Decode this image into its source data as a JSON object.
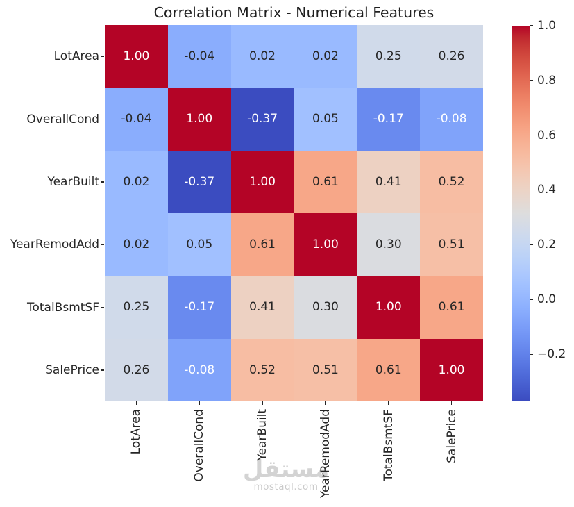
{
  "chart_data": {
    "type": "heatmap",
    "title": "Correlation Matrix - Numerical Features",
    "features": [
      "LotArea",
      "OverallCond",
      "YearBuilt",
      "YearRemodAdd",
      "TotalBsmtSF",
      "SalePrice"
    ],
    "matrix": [
      [
        1.0,
        -0.04,
        0.02,
        0.02,
        0.25,
        0.26
      ],
      [
        -0.04,
        1.0,
        -0.37,
        0.05,
        -0.17,
        -0.08
      ],
      [
        0.02,
        -0.37,
        1.0,
        0.61,
        0.41,
        0.52
      ],
      [
        0.02,
        0.05,
        0.61,
        1.0,
        0.3,
        0.51
      ],
      [
        0.25,
        -0.17,
        0.41,
        0.3,
        1.0,
        0.61
      ],
      [
        0.26,
        -0.08,
        0.52,
        0.51,
        0.61,
        1.0
      ]
    ],
    "annotation_decimals": 2,
    "colormap": "coolwarm",
    "vmin": -0.37,
    "vmax": 1.0,
    "colorbar": {
      "position": "right",
      "tick_values": [
        1.0,
        0.8,
        0.6,
        0.4,
        0.2,
        0.0,
        -0.2
      ],
      "tick_labels": [
        "1.0",
        "0.8",
        "0.6",
        "0.4",
        "0.2",
        "0.0",
        "−0.2"
      ]
    },
    "colors": {
      "cmap_low": "#3b4cc0",
      "cmap_mid": "#dddddd",
      "cmap_high": "#b40426",
      "annotation_dark": "#262626",
      "annotation_light": "#ffffff",
      "tick_color": "#262626"
    }
  },
  "watermark": {
    "logo_text": "مستقل",
    "site_text": "mostaql.com"
  }
}
